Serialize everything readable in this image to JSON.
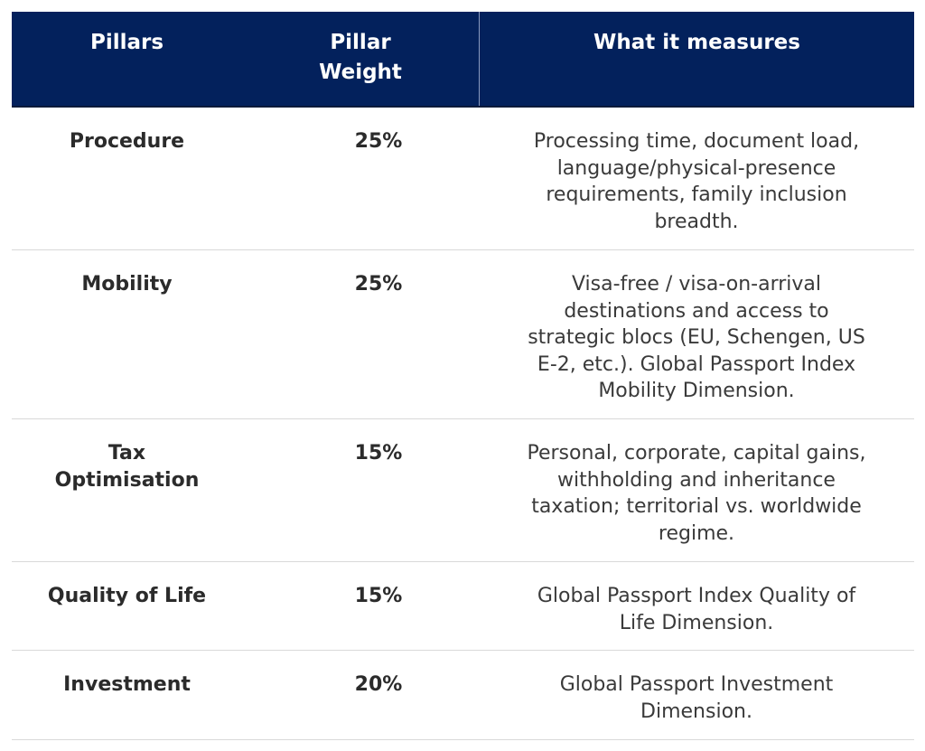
{
  "header": {
    "pillars": "Pillars",
    "pillar_weight": "Pillar Weight",
    "what_it_measures": "What it measures"
  },
  "rows": [
    {
      "pillar": "Procedure",
      "weight": "25%",
      "measures": "Processing time, document load, language/physical-presence requirements, family inclusion breadth."
    },
    {
      "pillar": "Mobility",
      "weight": "25%",
      "measures": "Visa-free / visa-on-arrival destinations and access to strategic blocs (EU, Schengen, US E-2, etc.). Global Passport Index Mobility Dimension."
    },
    {
      "pillar": "Tax Optimisation",
      "weight": "15%",
      "measures": "Personal, corporate, capital gains, withholding and inheritance taxation; territorial vs. worldwide regime."
    },
    {
      "pillar": "Quality of Life",
      "weight": "15%",
      "measures": "Global Passport Index Quality of Life Dimension."
    },
    {
      "pillar": "Investment",
      "weight": "20%",
      "measures": "Global Passport Investment Dimension."
    }
  ],
  "colors": {
    "header_bg": "#03215c",
    "header_text": "#ffffff",
    "row_divider": "#d9d9d9"
  }
}
